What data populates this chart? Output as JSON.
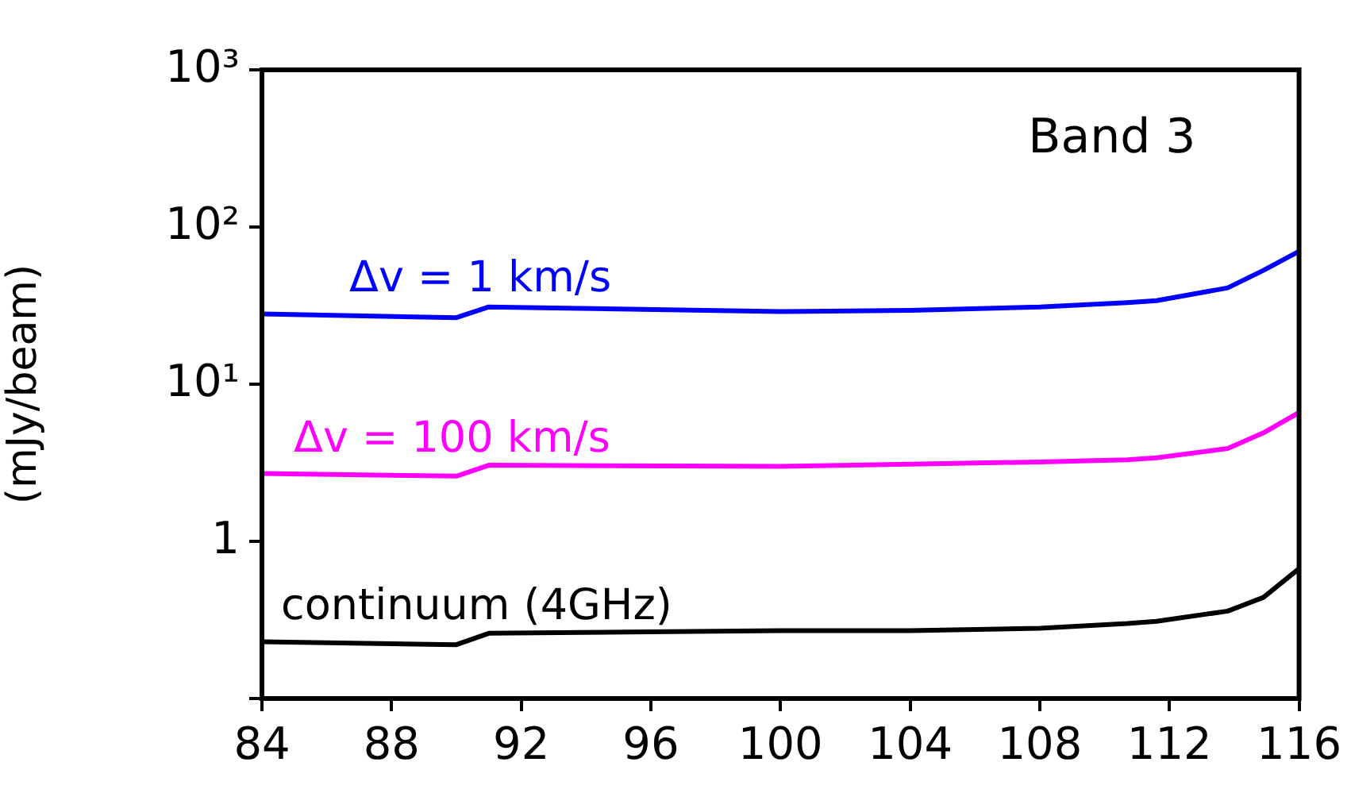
{
  "chart_data": {
    "type": "line",
    "title": "Band 3",
    "ylabel": "(mJy/beam)",
    "log": "y",
    "grid": false,
    "legend": false,
    "marker": "none",
    "line_style": "solid",
    "xlim": [
      84,
      116
    ],
    "xticks": [
      84,
      88,
      92,
      96,
      100,
      104,
      108,
      112,
      116
    ],
    "ylim": [
      0.1,
      1000
    ],
    "yticks": [
      {
        "value": 0.1,
        "label": null
      },
      1,
      {
        "value": 10,
        "label": "10¹"
      },
      {
        "value": 100,
        "label": "10²"
      },
      {
        "value": 1000,
        "label": "10³"
      }
    ],
    "x": [
      84,
      90,
      91,
      100,
      104,
      108,
      110.7,
      111.6,
      113.8,
      114.9,
      116
    ],
    "series": [
      {
        "name": "Δv = 1 km/s",
        "color": "#0000ff",
        "values": [
          28,
          26.5,
          31,
          29,
          29.5,
          31,
          33,
          34,
          41,
          53,
          70
        ]
      },
      {
        "name": "Δv = 100 km/s",
        "color": "#ff00ff",
        "values": [
          2.7,
          2.6,
          3.05,
          3,
          3.1,
          3.2,
          3.3,
          3.4,
          3.9,
          4.9,
          6.6
        ]
      },
      {
        "name": "continuum (4GHz)",
        "color": "#000000",
        "values": [
          0.23,
          0.22,
          0.26,
          0.27,
          0.27,
          0.28,
          0.3,
          0.31,
          0.36,
          0.44,
          0.67
        ]
      }
    ]
  }
}
